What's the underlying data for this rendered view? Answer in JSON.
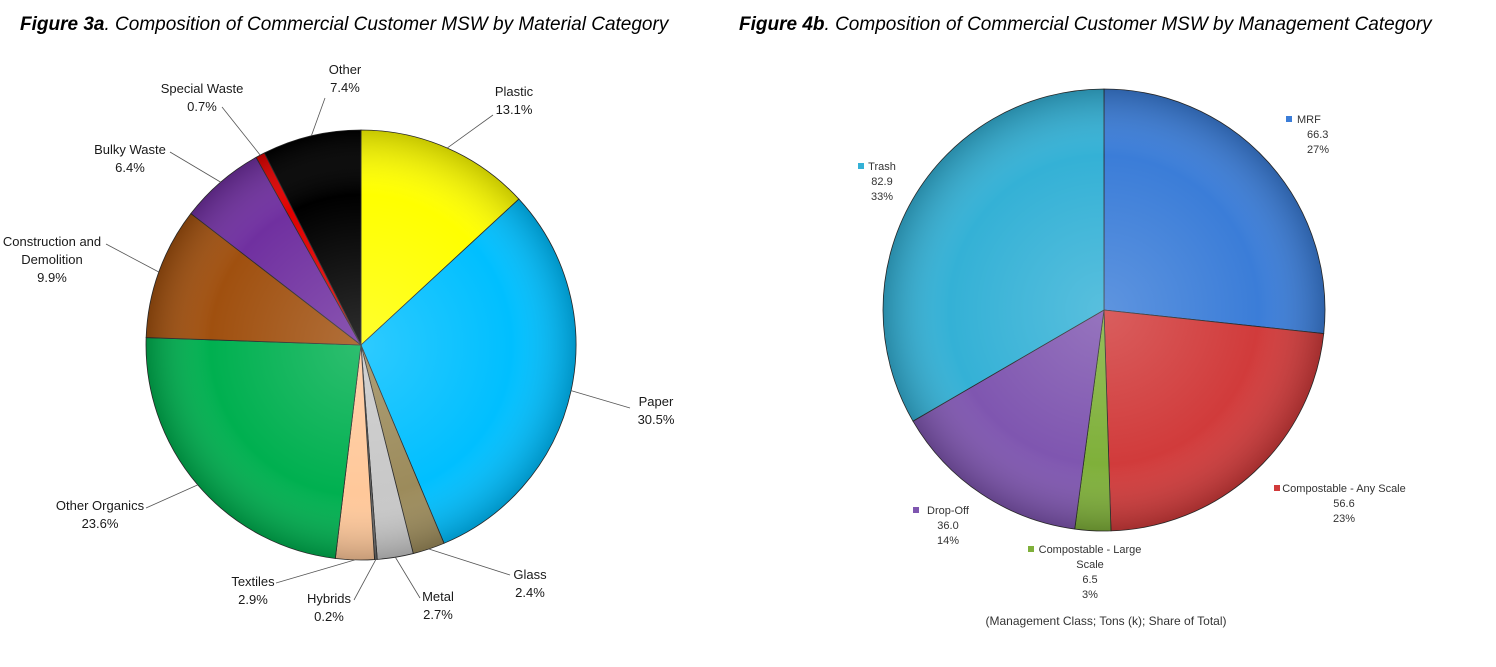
{
  "chart_data": [
    {
      "type": "pie",
      "title_prefix": "Figure 3a",
      "title": ". Composition of Commercial Customer MSW by Material Category",
      "series": [
        {
          "name": "Plastic",
          "value": 13.1,
          "label": "13.1%",
          "color": "#FFFF00"
        },
        {
          "name": "Paper",
          "value": 30.5,
          "label": "30.5%",
          "color": "#00BFFF"
        },
        {
          "name": "Glass",
          "value": 2.4,
          "label": "2.4%",
          "color": "#9C8B5B"
        },
        {
          "name": "Metal",
          "value": 2.7,
          "label": "2.7%",
          "color": "#C8C8C8"
        },
        {
          "name": "Hybrids",
          "value": 0.2,
          "label": "0.2%",
          "color": "#6B6B6B"
        },
        {
          "name": "Textiles",
          "value": 2.9,
          "label": "2.9%",
          "color": "#FFC89A"
        },
        {
          "name": "Other Organics",
          "value": 23.6,
          "label": "23.6%",
          "color": "#00B050"
        },
        {
          "name": "Construction and Demolition",
          "value": 9.9,
          "label": "9.9%",
          "color": "#A0500F"
        },
        {
          "name": "Bulky Waste",
          "value": 6.4,
          "label": "6.4%",
          "color": "#7030A0"
        },
        {
          "name": "Special Waste",
          "value": 0.7,
          "label": "0.7%",
          "color": "#E00000"
        },
        {
          "name": "Other",
          "value": 7.4,
          "label": "7.4%",
          "color": "#000000"
        }
      ]
    },
    {
      "type": "pie",
      "title_prefix": "Figure 4b",
      "title": ". Composition of Commercial Customer MSW by Management Category",
      "footnote": "(Management Class; Tons (k); Share of Total)",
      "series": [
        {
          "name": "MRF",
          "value": 66.3,
          "value_label": "66.3",
          "share": "27%",
          "color": "#3B7DD8"
        },
        {
          "name": "Compostable - Any Scale",
          "value": 56.6,
          "value_label": "56.6",
          "share": "23%",
          "color": "#D13B3B"
        },
        {
          "name": "Compostable - Large Scale",
          "value": 6.5,
          "value_label": "6.5",
          "share": "3%",
          "color": "#7FB03A"
        },
        {
          "name": "Drop-Off",
          "value": 36.0,
          "value_label": "36.0",
          "share": "14%",
          "color": "#7F56B0"
        },
        {
          "name": "Trash",
          "value": 82.9,
          "value_label": "82.9",
          "share": "33%",
          "color": "#34B1D6"
        }
      ]
    }
  ]
}
